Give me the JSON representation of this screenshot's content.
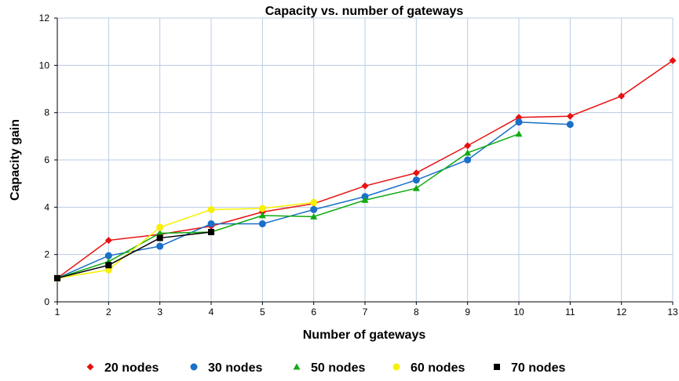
{
  "chart_data": {
    "type": "line",
    "title": "Capacity vs. number of gateways",
    "xlabel": "Number of gateways",
    "ylabel": "Capacity gain",
    "xlim": [
      1,
      13
    ],
    "ylim": [
      0,
      12
    ],
    "xticks": [
      1,
      2,
      3,
      4,
      5,
      6,
      7,
      8,
      9,
      10,
      11,
      12,
      13
    ],
    "yticks": [
      0,
      2,
      4,
      6,
      8,
      10,
      12
    ],
    "grid": true,
    "legend_position": "bottom",
    "series": [
      {
        "name": "20 nodes",
        "color": "#e81010",
        "marker": "diamond",
        "x": [
          1,
          2,
          3,
          4,
          5,
          6,
          7,
          8,
          9,
          10,
          11,
          12,
          13
        ],
        "values": [
          1.0,
          2.6,
          2.85,
          3.2,
          3.8,
          4.15,
          4.9,
          5.45,
          6.6,
          7.8,
          7.85,
          8.7,
          10.2
        ]
      },
      {
        "name": "30 nodes",
        "color": "#1a6fc8",
        "marker": "circle",
        "x": [
          1,
          2,
          3,
          4,
          5,
          6,
          7,
          8,
          9,
          10,
          11
        ],
        "values": [
          1.0,
          1.95,
          2.35,
          3.3,
          3.3,
          3.9,
          4.45,
          5.15,
          6.0,
          7.6,
          7.5
        ]
      },
      {
        "name": "50 nodes",
        "color": "#10aa10",
        "marker": "triangle",
        "x": [
          1,
          2,
          3,
          4,
          5,
          6,
          7,
          8,
          9,
          10
        ],
        "values": [
          1.0,
          1.7,
          2.9,
          2.95,
          3.65,
          3.6,
          4.3,
          4.8,
          6.3,
          7.1
        ]
      },
      {
        "name": "60 nodes",
        "color": "#f8f000",
        "marker": "circle",
        "x": [
          1,
          2,
          3,
          4,
          5,
          6
        ],
        "values": [
          1.0,
          1.35,
          3.15,
          3.9,
          3.95,
          4.2
        ]
      },
      {
        "name": "70 nodes",
        "color": "#000000",
        "marker": "square",
        "x": [
          1,
          2,
          3,
          4
        ],
        "values": [
          1.0,
          1.55,
          2.7,
          2.95
        ]
      }
    ]
  }
}
